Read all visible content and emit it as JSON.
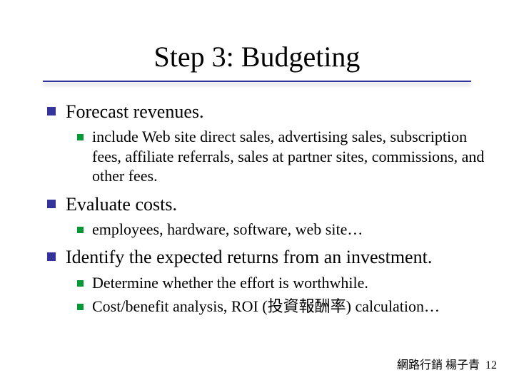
{
  "title": "Step 3: Budgeting",
  "items": [
    {
      "text": "Forecast revenues.",
      "sub": [
        "include Web site direct sales, advertising sales, subscription fees, affiliate referrals, sales at partner sites, commissions, and other fees."
      ]
    },
    {
      "text": "Evaluate costs.",
      "sub": [
        "employees, hardware, software, web site…"
      ]
    },
    {
      "text": "Identify the expected returns from an investment.",
      "sub": [
        "Determine whether the effort is worthwhile.",
        "Cost/benefit analysis, ROI (投資報酬率) calculation…"
      ]
    }
  ],
  "footer": {
    "left": "網路行銷  楊子青",
    "page": "12"
  },
  "colors": {
    "bullet_lvl1": "#333399",
    "bullet_lvl2": "#009933",
    "underline": "#333399",
    "text": "#000000",
    "background": "#ffffff"
  },
  "fonts": {
    "title_size_pt": 40,
    "lvl1_size_pt": 26,
    "lvl2_size_pt": 22,
    "footer_size_pt": 16,
    "family": "Times New Roman"
  }
}
